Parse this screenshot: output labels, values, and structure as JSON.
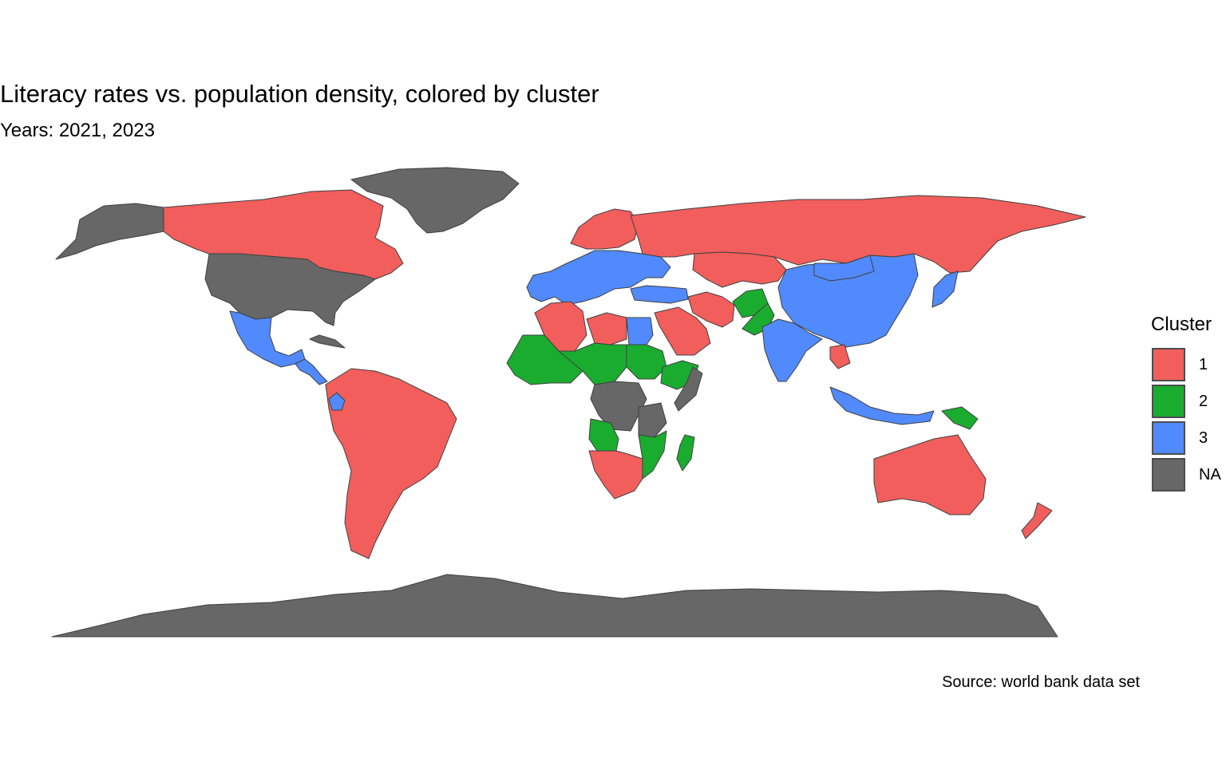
{
  "title": "Literacy rates vs. population density, colored by cluster",
  "subtitle": "Years: 2021, 2023",
  "caption": "Source: world bank data set",
  "legend": {
    "title": "Cluster",
    "items": [
      {
        "label": "1",
        "color": "#f15e5c"
      },
      {
        "label": "2",
        "color": "#1aac2f"
      },
      {
        "label": "3",
        "color": "#518afd"
      },
      {
        "label": "NA",
        "color": "#676767"
      }
    ]
  },
  "map": {
    "type": "choropleth",
    "projection": "equirectangular",
    "variable": "cluster",
    "border_color": "#404040",
    "regions": [
      {
        "name": "Canada",
        "cluster": "1"
      },
      {
        "name": "United States",
        "cluster": "NA"
      },
      {
        "name": "Alaska",
        "cluster": "NA"
      },
      {
        "name": "Greenland",
        "cluster": "NA"
      },
      {
        "name": "Mexico",
        "cluster": "3"
      },
      {
        "name": "Central America",
        "cluster": "3"
      },
      {
        "name": "Cuba",
        "cluster": "NA"
      },
      {
        "name": "South America",
        "cluster": "1"
      },
      {
        "name": "Ecuador",
        "cluster": "3"
      },
      {
        "name": "Western Europe",
        "cluster": "3"
      },
      {
        "name": "Scandinavia",
        "cluster": "1"
      },
      {
        "name": "Russia",
        "cluster": "1"
      },
      {
        "name": "Kazakhstan",
        "cluster": "1"
      },
      {
        "name": "Turkey",
        "cluster": "3"
      },
      {
        "name": "Iran",
        "cluster": "1"
      },
      {
        "name": "Saudi Arabia",
        "cluster": "1"
      },
      {
        "name": "Afghanistan",
        "cluster": "2"
      },
      {
        "name": "Pakistan",
        "cluster": "2"
      },
      {
        "name": "India",
        "cluster": "3"
      },
      {
        "name": "China",
        "cluster": "3"
      },
      {
        "name": "Mongolia",
        "cluster": "3"
      },
      {
        "name": "Japan",
        "cluster": "3"
      },
      {
        "name": "Laos",
        "cluster": "1"
      },
      {
        "name": "Indonesia",
        "cluster": "3"
      },
      {
        "name": "Papua New Guinea",
        "cluster": "2"
      },
      {
        "name": "Australia",
        "cluster": "1"
      },
      {
        "name": "New Zealand",
        "cluster": "1"
      },
      {
        "name": "Algeria",
        "cluster": "1"
      },
      {
        "name": "Libya",
        "cluster": "1"
      },
      {
        "name": "Egypt",
        "cluster": "3"
      },
      {
        "name": "West Africa",
        "cluster": "2"
      },
      {
        "name": "Sahel",
        "cluster": "2"
      },
      {
        "name": "Sudan",
        "cluster": "2"
      },
      {
        "name": "Ethiopia",
        "cluster": "2"
      },
      {
        "name": "Somalia",
        "cluster": "NA"
      },
      {
        "name": "DR Congo",
        "cluster": "NA"
      },
      {
        "name": "Tanzania",
        "cluster": "NA"
      },
      {
        "name": "Angola",
        "cluster": "2"
      },
      {
        "name": "Mozambique",
        "cluster": "2"
      },
      {
        "name": "Madagascar",
        "cluster": "2"
      },
      {
        "name": "Southern Africa",
        "cluster": "1"
      },
      {
        "name": "Antarctica",
        "cluster": "NA"
      }
    ]
  }
}
